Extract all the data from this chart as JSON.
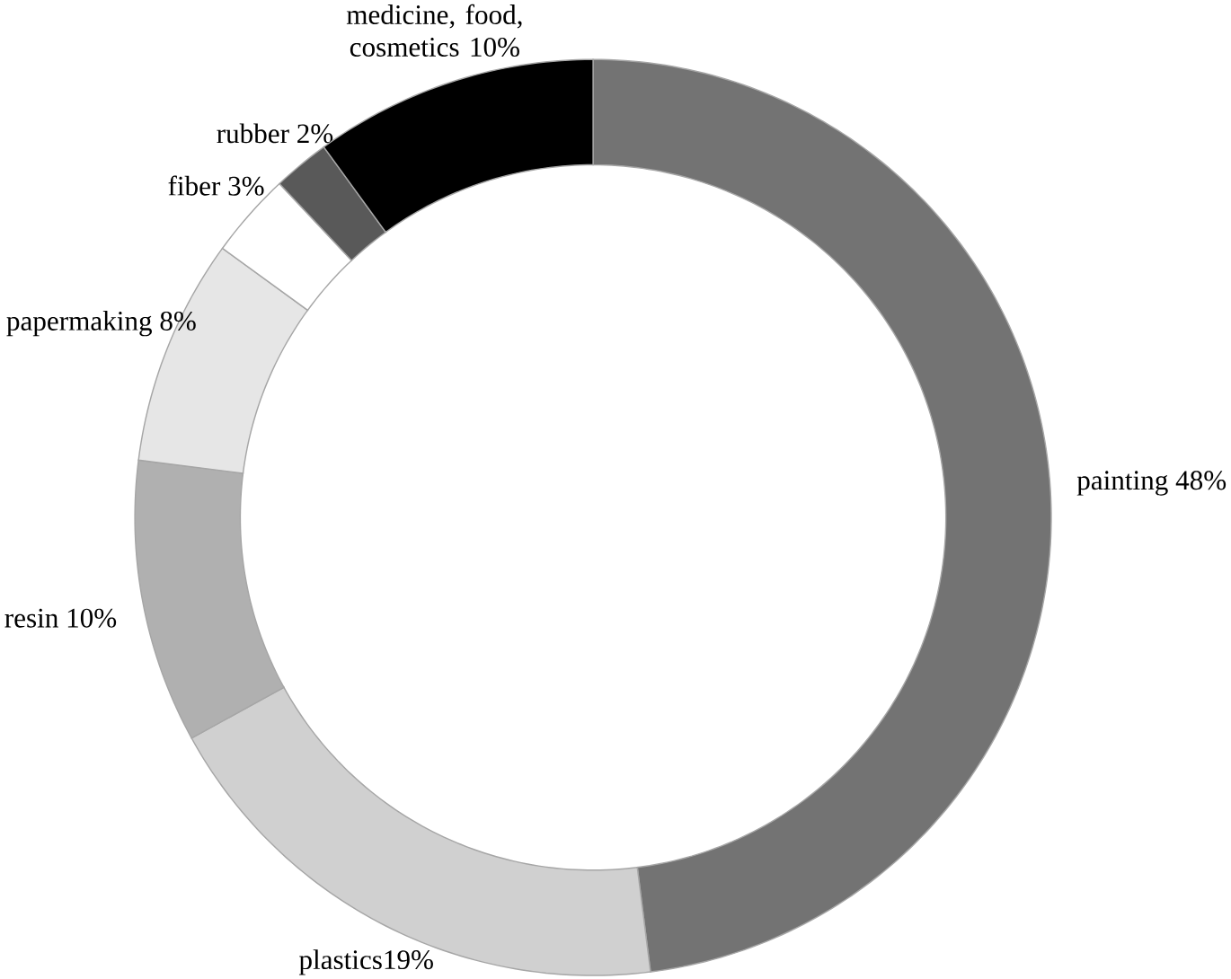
{
  "chart_data": {
    "type": "donut",
    "categories": [
      "painting 48%",
      "plastics19%",
      "resin 10%",
      "papermaking 8%",
      "fiber 3%",
      "rubber 2%",
      "medicine, food, cosmetics 10%"
    ],
    "values": [
      48,
      19,
      10,
      8,
      3,
      2,
      10
    ],
    "colors": [
      "#737373",
      "#d0d0d0",
      "#b0b0b0",
      "#e6e6e6",
      "#ffffff",
      "#595959",
      "#000000"
    ]
  }
}
